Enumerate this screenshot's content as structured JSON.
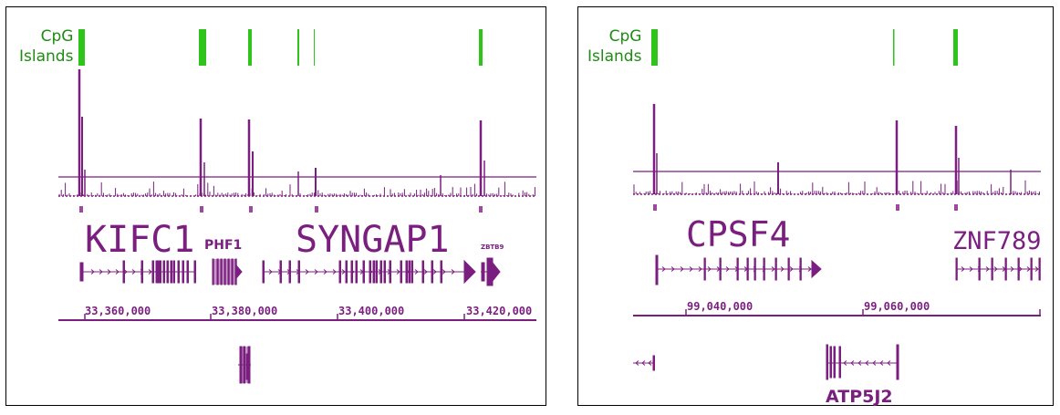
{
  "colors": {
    "cpg": "#2ec41c",
    "signal": "#7a1f7f",
    "border": "#000000",
    "label_green": "#1e8c12"
  },
  "panels": [
    {
      "id": "left",
      "cpg_label_line1": "CpG",
      "cpg_label_line2": "Islands",
      "genes": [
        {
          "name": "KIFC1",
          "style": "mono-large"
        },
        {
          "name": "PHF1",
          "style": "bold-small"
        },
        {
          "name": "SYNGAP1",
          "style": "mono-large"
        },
        {
          "name": "ZBTB9",
          "style": "tiny"
        }
      ],
      "coordinates": [
        "33,360,000",
        "33,380,000",
        "33,400,000",
        "33,420,000"
      ]
    },
    {
      "id": "right",
      "cpg_label_line1": "CpG",
      "cpg_label_line2": "Islands",
      "genes": [
        {
          "name": "CPSF4",
          "style": "mono-large"
        },
        {
          "name": "ZNF789",
          "style": "mono-medium"
        },
        {
          "name": "ATP5J2",
          "style": "bold-medium"
        }
      ],
      "coordinates": [
        "99,040,000",
        "99,060,000"
      ]
    }
  ]
}
